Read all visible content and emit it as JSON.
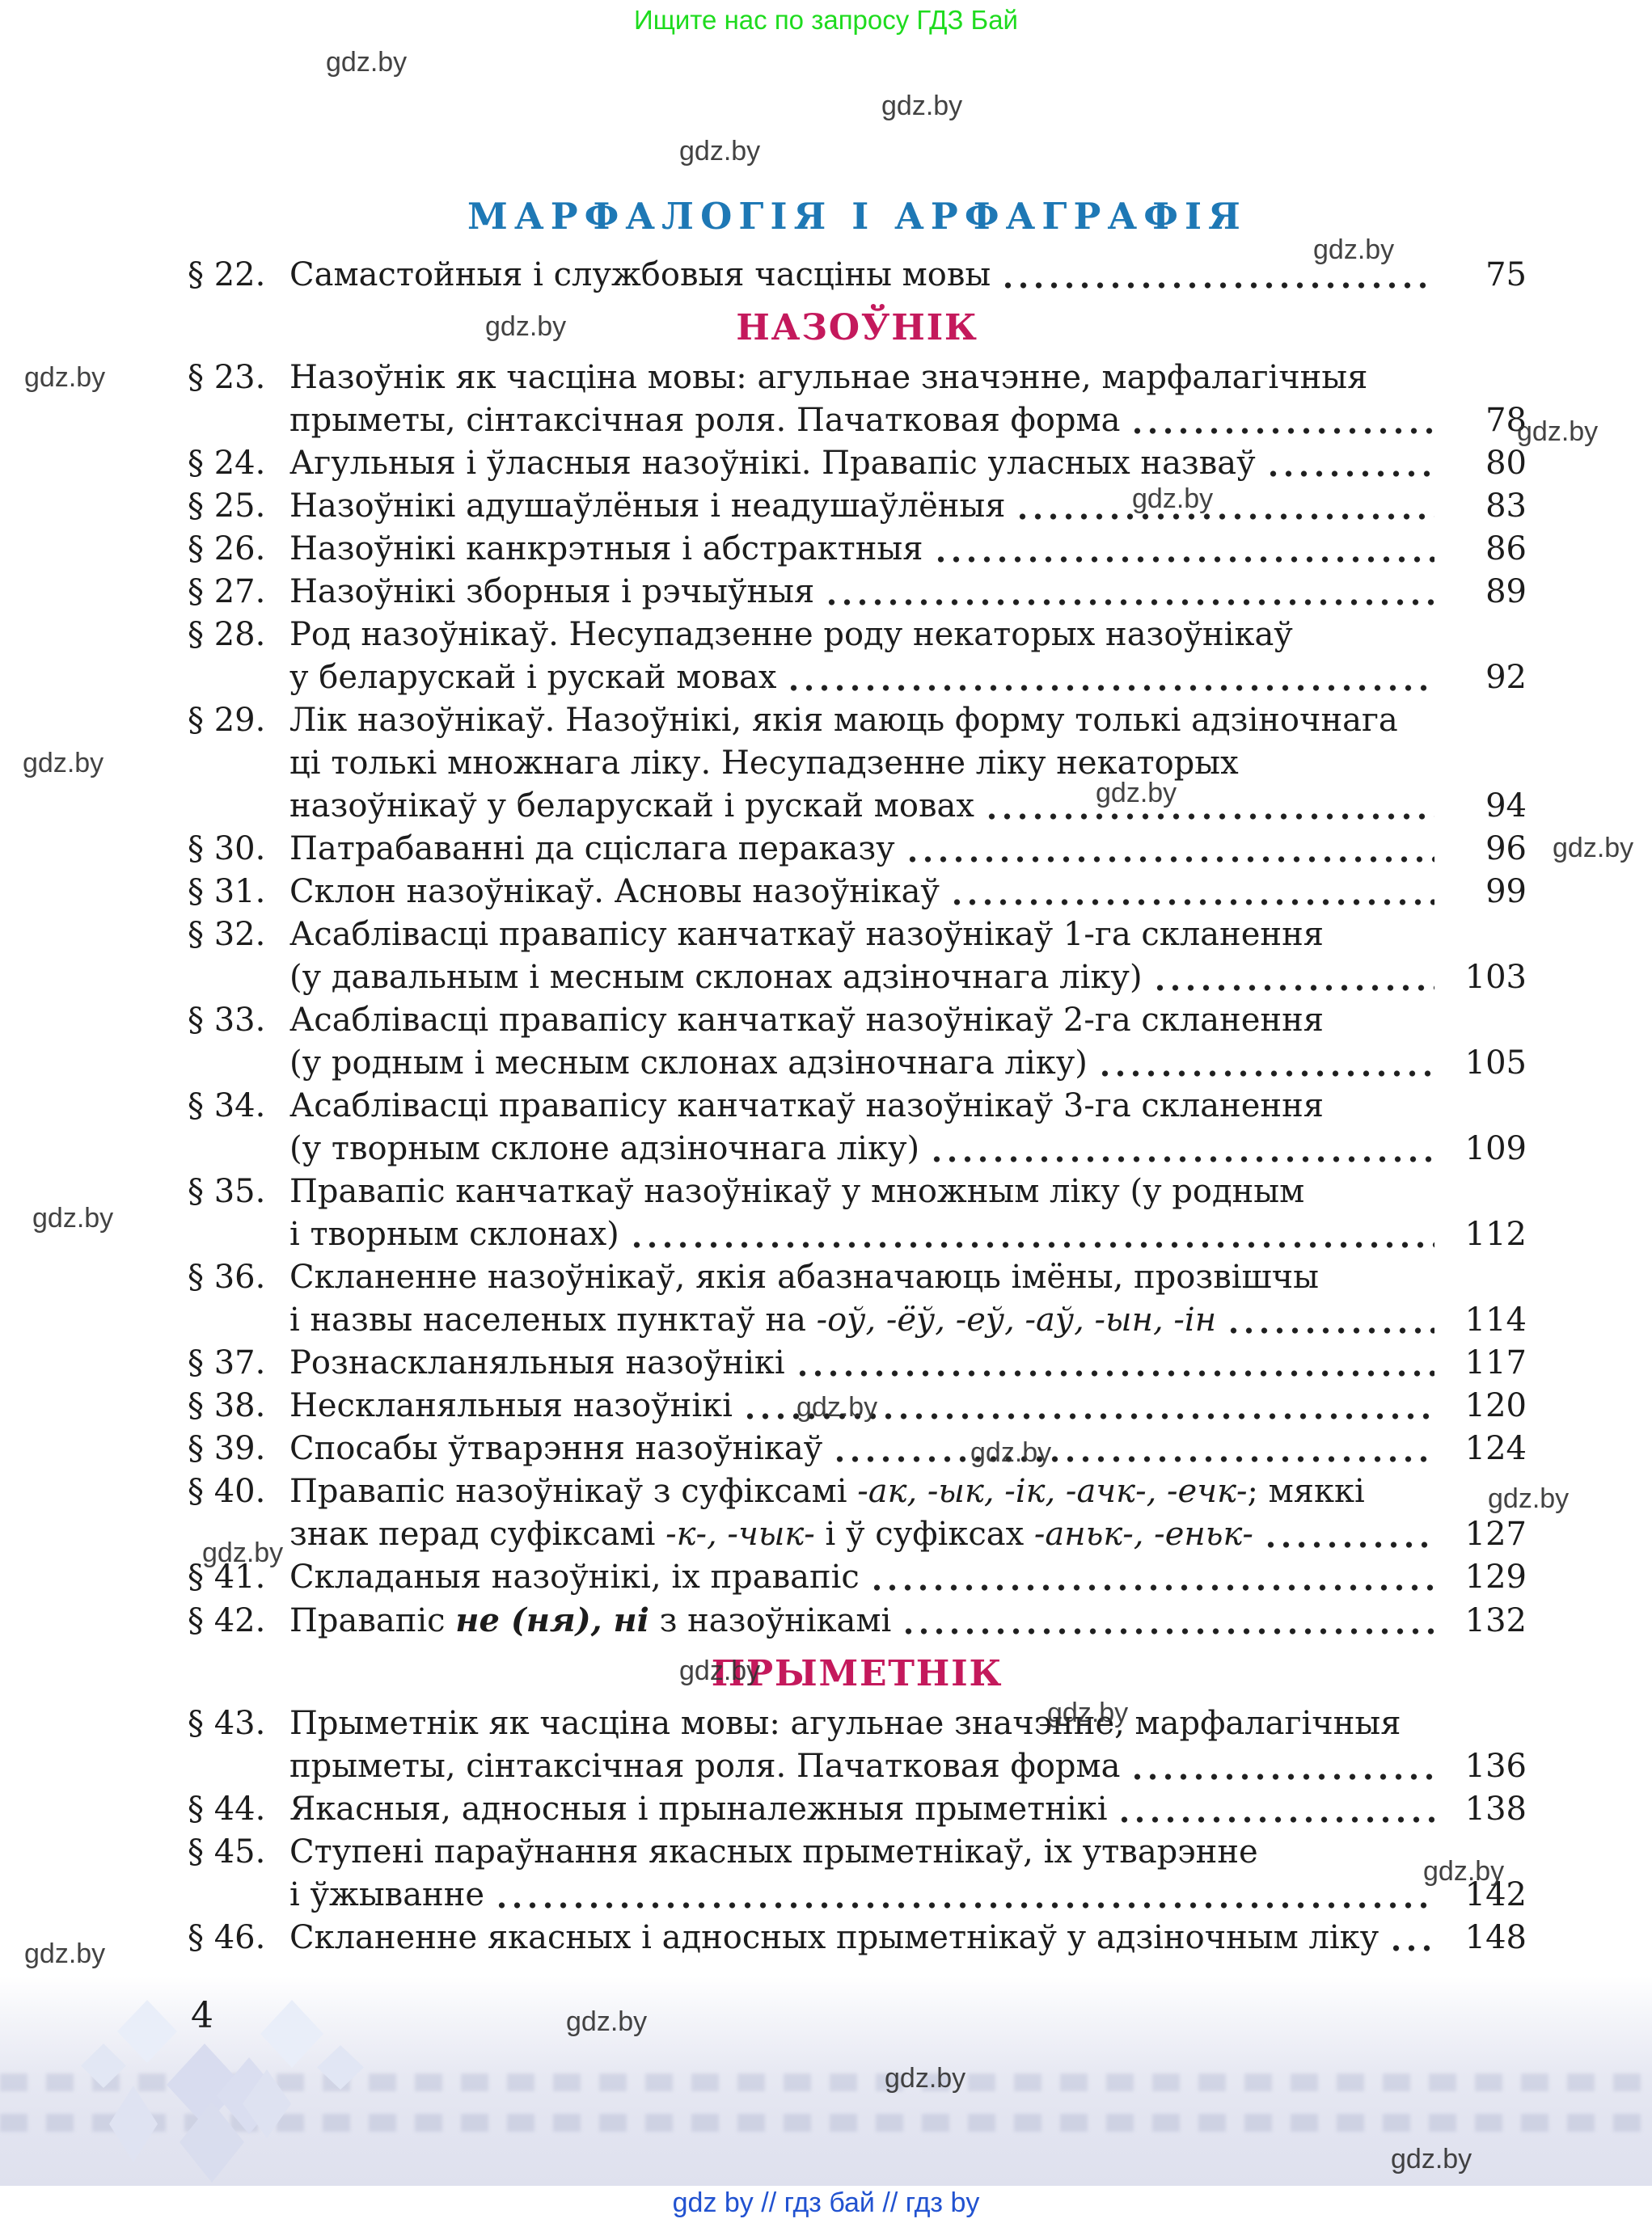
{
  "banner": {
    "text": "Ищите нас по запросу ГДЗ Бай"
  },
  "watermark_text": "gdz.by",
  "headings": {
    "part": "МАРФАЛОГІЯ І АРФАГРАФІЯ"
  },
  "toc": [
    {
      "kind": "entry",
      "label": "§ 22.",
      "page": "75",
      "lines": [
        [
          {
            "t": "Самастойныя і службовыя часціны мовы"
          }
        ]
      ]
    },
    {
      "kind": "section",
      "title": "НАЗОЎНІК"
    },
    {
      "kind": "entry",
      "label": "§ 23.",
      "page": "78",
      "lines": [
        [
          {
            "t": "Назоўнік як часціна мовы: агульнае значэнне, марфалагічныя"
          }
        ],
        [
          {
            "t": "прыметы, сінтаксічная роля. Пачатковая форма"
          }
        ]
      ]
    },
    {
      "kind": "entry",
      "label": "§ 24.",
      "page": "80",
      "lines": [
        [
          {
            "t": "Агульныя і ўласныя назоўнікі. Правапіс уласных назваў"
          }
        ]
      ]
    },
    {
      "kind": "entry",
      "label": "§ 25.",
      "page": "83",
      "lines": [
        [
          {
            "t": "Назоўнікі адушаўлёныя і неадушаўлёныя"
          }
        ]
      ]
    },
    {
      "kind": "entry",
      "label": "§ 26.",
      "page": "86",
      "lines": [
        [
          {
            "t": "Назоўнікі канкрэтныя і абстрактныя"
          }
        ]
      ]
    },
    {
      "kind": "entry",
      "label": "§ 27.",
      "page": "89",
      "lines": [
        [
          {
            "t": "Назоўнікі зборныя і рэчыўныя"
          }
        ]
      ]
    },
    {
      "kind": "entry",
      "label": "§ 28.",
      "page": "92",
      "lines": [
        [
          {
            "t": "Род назоўнікаў. Несупадзенне роду некаторых назоўнікаў"
          }
        ],
        [
          {
            "t": "у беларускай і рускай мовах"
          }
        ]
      ]
    },
    {
      "kind": "entry",
      "label": "§ 29.",
      "page": "94",
      "lines": [
        [
          {
            "t": "Лік назоўнікаў. Назоўнікі, якія маюць форму толькі адзіночнага"
          }
        ],
        [
          {
            "t": "ці толькі множнага ліку. Несупадзенне ліку некаторых"
          }
        ],
        [
          {
            "t": "назоўнікаў у беларускай і рускай мовах"
          }
        ]
      ]
    },
    {
      "kind": "entry",
      "label": "§ 30.",
      "page": "96",
      "lines": [
        [
          {
            "t": "Патрабаванні да сціслага пераказу"
          }
        ]
      ]
    },
    {
      "kind": "entry",
      "label": "§ 31.",
      "page": "99",
      "lines": [
        [
          {
            "t": "Склон назоўнікаў. Асновы назоўнікаў"
          }
        ]
      ]
    },
    {
      "kind": "entry",
      "label": "§ 32.",
      "page": "103",
      "lines": [
        [
          {
            "t": "Асаблівасці правапісу канчаткаў назоўнікаў 1-га скланення"
          }
        ],
        [
          {
            "t": "(у давальным і месным склонах адзіночнага ліку)"
          }
        ]
      ]
    },
    {
      "kind": "entry",
      "label": "§ 33.",
      "page": "105",
      "lines": [
        [
          {
            "t": "Асаблівасці правапісу канчаткаў назоўнікаў 2-га скланення"
          }
        ],
        [
          {
            "t": "(у родным і месным склонах адзіночнага ліку)"
          }
        ]
      ]
    },
    {
      "kind": "entry",
      "label": "§ 34.",
      "page": "109",
      "lines": [
        [
          {
            "t": "Асаблівасці правапісу канчаткаў назоўнікаў 3-га скланення"
          }
        ],
        [
          {
            "t": "(у творным склоне адзіночнага ліку)"
          }
        ]
      ]
    },
    {
      "kind": "entry",
      "label": "§ 35.",
      "page": "112",
      "lines": [
        [
          {
            "t": "Правапіс канчаткаў назоўнікаў у множным ліку (у родным"
          }
        ],
        [
          {
            "t": "і творным склонах)"
          }
        ]
      ]
    },
    {
      "kind": "entry",
      "label": "§ 36.",
      "page": "114",
      "lines": [
        [
          {
            "t": "Скланенне назоўнікаў, якія абазначаюць імёны, прозвішчы"
          }
        ],
        [
          {
            "t": "і назвы населеных пунктаў на "
          },
          {
            "t": "-оў, -ёў, -еў, -аў, -ын, -ін",
            "style": "italic"
          }
        ]
      ]
    },
    {
      "kind": "entry",
      "label": "§ 37.",
      "page": "117",
      "lines": [
        [
          {
            "t": "Рознаскланяльныя назоўнікі"
          }
        ]
      ]
    },
    {
      "kind": "entry",
      "label": "§ 38.",
      "page": "120",
      "lines": [
        [
          {
            "t": "Нескланяльныя назоўнікі"
          }
        ]
      ]
    },
    {
      "kind": "entry",
      "label": "§ 39.",
      "page": "124",
      "lines": [
        [
          {
            "t": "Спосабы ўтварэння назоўнікаў"
          }
        ]
      ]
    },
    {
      "kind": "entry",
      "label": "§ 40.",
      "page": "127",
      "lines": [
        [
          {
            "t": "Правапіс назоўнікаў з суфіксамі "
          },
          {
            "t": "-ак, -ык, -ік, -ачк-, -ечк-",
            "style": "italic"
          },
          {
            "t": "; мяккі"
          }
        ],
        [
          {
            "t": "знак перад суфіксамі "
          },
          {
            "t": "-к-, -чык-",
            "style": "italic"
          },
          {
            "t": " і ў суфіксах "
          },
          {
            "t": "-аньк-, -еньк-",
            "style": "italic"
          }
        ]
      ]
    },
    {
      "kind": "entry",
      "label": "§ 41.",
      "page": "129",
      "lines": [
        [
          {
            "t": "Складаныя назоўнікі, іх правапіс"
          }
        ]
      ]
    },
    {
      "kind": "entry",
      "label": "§ 42.",
      "page": "132",
      "lines": [
        [
          {
            "t": "Правапіс "
          },
          {
            "t": "не (ня), ні",
            "style": "bolditalic"
          },
          {
            "t": " з назоўнікамі"
          }
        ]
      ]
    },
    {
      "kind": "section",
      "title": "ПРЫМЕТНІК"
    },
    {
      "kind": "entry",
      "label": "§ 43.",
      "page": "136",
      "lines": [
        [
          {
            "t": "Прыметнік як часціна мовы: агульнае значэнне, марфалагічныя"
          }
        ],
        [
          {
            "t": "прыметы, сінтаксічная роля. Пачатковая форма"
          }
        ]
      ]
    },
    {
      "kind": "entry",
      "label": "§ 44.",
      "page": "138",
      "lines": [
        [
          {
            "t": "Якасныя, адносныя і прыналежныя прыметнікі"
          }
        ]
      ]
    },
    {
      "kind": "entry",
      "label": "§ 45.",
      "page": "142",
      "lines": [
        [
          {
            "t": "Ступені параўнання якасных прыметнікаў, іх утварэнне"
          }
        ],
        [
          {
            "t": "і ўжыванне"
          }
        ]
      ]
    },
    {
      "kind": "entry",
      "label": "§ 46.",
      "page": "148",
      "lines": [
        [
          {
            "t": "Скланенне якасных і адносных прыметнікаў у адзіночным ліку"
          }
        ]
      ]
    }
  ],
  "page_number": "4",
  "footer": {
    "text": "gdz by  //  гдз бай  //  гдз by"
  },
  "colors": {
    "part_heading": "#1e78b5",
    "section_heading": "#c4195c",
    "banner_green": "#1edb1e",
    "footer_blue": "#2152d0",
    "body_text": "#1c1c1c",
    "band_lavender": "#e2e4f0"
  }
}
